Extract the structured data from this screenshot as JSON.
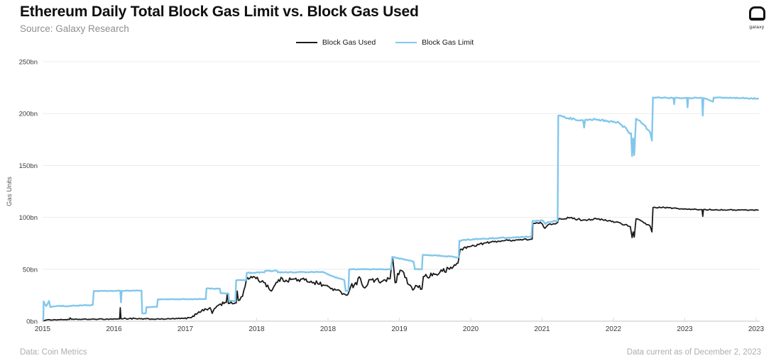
{
  "header": {
    "title": "Ethereum Daily Total Block Gas Limit vs. Block Gas Used",
    "subtitle": "Source: Galaxy Research",
    "logo_text": "galaxy"
  },
  "legend": {
    "items": [
      {
        "label": "Block Gas Used",
        "color": "#1a1a1a"
      },
      {
        "label": "Block Gas Limit",
        "color": "#82c7ec"
      }
    ]
  },
  "footer": {
    "left": "Data: Coin Metrics",
    "right": "Data current as of December 2, 2023"
  },
  "colors": {
    "gas_used_line": "#1a1a1a",
    "gas_limit_line": "#82c7ec",
    "gridline": "#ececec",
    "axis_line": "#c4c4c4",
    "tick_text": "#3a3a3a",
    "axis_label_text": "#555555"
  },
  "chart_data": {
    "type": "line",
    "title": "Ethereum Daily Total Block Gas Limit vs. Block Gas Used",
    "xlabel": "",
    "ylabel": "Gas Units",
    "y_unit": "bn gas units per day",
    "ylim": [
      0,
      250
    ],
    "grid": "horizontal",
    "legend_position": "top-center",
    "x_unit": "months since July 2015",
    "x_range_months": [
      0,
      101.3
    ],
    "y_ticks": [
      {
        "value": 0,
        "label": "0bn"
      },
      {
        "value": 50,
        "label": "50bn"
      },
      {
        "value": 100,
        "label": "100bn"
      },
      {
        "value": 150,
        "label": "150bn"
      },
      {
        "value": 200,
        "label": "200bn"
      },
      {
        "value": 250,
        "label": "250bn"
      }
    ],
    "x_ticks": [
      {
        "m": 0,
        "label": "2015"
      },
      {
        "m": 10.1,
        "label": "2016"
      },
      {
        "m": 20.2,
        "label": "2017"
      },
      {
        "m": 30.3,
        "label": "2018"
      },
      {
        "m": 40.4,
        "label": "2018"
      },
      {
        "m": 50.5,
        "label": "2019"
      },
      {
        "m": 60.6,
        "label": "2020"
      },
      {
        "m": 70.7,
        "label": "2021"
      },
      {
        "m": 80.8,
        "label": "2022"
      },
      {
        "m": 90.9,
        "label": "2023"
      },
      {
        "m": 101,
        "label": "2023"
      }
    ],
    "series": [
      {
        "name": "Block Gas Used",
        "color": "#1a1a1a",
        "stroke_width": 1.8,
        "points_format": [
          "month_since_jul2015",
          "bn_per_day",
          "daily_noise_bn"
        ],
        "points": [
          [
            0.1,
            0.4,
            0
          ],
          [
            0.6,
            1.2,
            0.25
          ],
          [
            3.8,
            1.6,
            0.3
          ],
          [
            3.9,
            3.2,
            0
          ],
          [
            4.1,
            1.7,
            0.3
          ],
          [
            9.5,
            2.0,
            0.4
          ],
          [
            10.9,
            2.2,
            0.5
          ],
          [
            11.0,
            13,
            0
          ],
          [
            11.1,
            2.4,
            0.5
          ],
          [
            12.3,
            2.6,
            1.0
          ],
          [
            13.5,
            2.2,
            0.5
          ],
          [
            16.5,
            2.0,
            0.4
          ],
          [
            20.0,
            2.6,
            0.5
          ],
          [
            21.1,
            3.5,
            0.7
          ],
          [
            22.1,
            9,
            1.2
          ],
          [
            23.7,
            13,
            1.5
          ],
          [
            24.0,
            7.5,
            0
          ],
          [
            24.3,
            12,
            1.5
          ],
          [
            25.0,
            16,
            2.0
          ],
          [
            26.0,
            18,
            2.0
          ],
          [
            26.15,
            27,
            0
          ],
          [
            26.3,
            17,
            1.5
          ],
          [
            27.4,
            17.5,
            1.5
          ],
          [
            27.55,
            29,
            0
          ],
          [
            27.7,
            20,
            1.5
          ],
          [
            28.3,
            24,
            1.5
          ],
          [
            28.85,
            40,
            1.5
          ],
          [
            29.5,
            43,
            1.8
          ],
          [
            30.2,
            41,
            2.0
          ],
          [
            31.5,
            37,
            2.5
          ],
          [
            32.4,
            29,
            1.5
          ],
          [
            33.4,
            40,
            2.2
          ],
          [
            36.2,
            40,
            2.5
          ],
          [
            38.0,
            38.5,
            2.5
          ],
          [
            39.7,
            35,
            2.0
          ],
          [
            41.5,
            30,
            1.8
          ],
          [
            42.6,
            26.5,
            1.2
          ],
          [
            43.2,
            25.5,
            0.8
          ],
          [
            43.6,
            33,
            3.0
          ],
          [
            45.0,
            41,
            3.2
          ],
          [
            45.6,
            32,
            2.0
          ],
          [
            46.4,
            40,
            3.2
          ],
          [
            47.6,
            38,
            3.0
          ],
          [
            49.2,
            41,
            2.5
          ],
          [
            49.55,
            61.5,
            0
          ],
          [
            49.9,
            37,
            3.0
          ],
          [
            50.6,
            49,
            3.0
          ],
          [
            51.3,
            42,
            3.0
          ],
          [
            52.4,
            30,
            2.0
          ],
          [
            53.0,
            34,
            2.2
          ],
          [
            53.7,
            31,
            1.5
          ],
          [
            53.9,
            43,
            2.5
          ],
          [
            55.5,
            45,
            3.0
          ],
          [
            56.6,
            48,
            3.0
          ],
          [
            57.6,
            50,
            2.5
          ],
          [
            58.8,
            56,
            2.0
          ],
          [
            59.1,
            69,
            1.5
          ],
          [
            60.5,
            72,
            1.2
          ],
          [
            62.8,
            75.5,
            0.9
          ],
          [
            65.0,
            77.5,
            0.8
          ],
          [
            69.3,
            79,
            0.6
          ],
          [
            69.4,
            94,
            0.8
          ],
          [
            70.6,
            94.5,
            0.8
          ],
          [
            71.1,
            89.5,
            0.6
          ],
          [
            71.5,
            92.5,
            0.8
          ],
          [
            72.9,
            95,
            0.8
          ],
          [
            73.05,
            98.5,
            0.8
          ],
          [
            74.5,
            99.5,
            0.9
          ],
          [
            76.5,
            97.5,
            0.9
          ],
          [
            78.4,
            98.5,
            0.8
          ],
          [
            81.6,
            95,
            0.9
          ],
          [
            83.2,
            91,
            0.8
          ],
          [
            83.45,
            80.5,
            0
          ],
          [
            83.6,
            86,
            0
          ],
          [
            83.75,
            81,
            0
          ],
          [
            84.0,
            98.5,
            0.8
          ],
          [
            85.3,
            94.5,
            0.9
          ],
          [
            86.0,
            91.5,
            0.8
          ],
          [
            86.25,
            86,
            0
          ],
          [
            86.4,
            109.5,
            0.5
          ],
          [
            88.0,
            109.5,
            0.5
          ],
          [
            91.2,
            107.8,
            0.5
          ],
          [
            93.35,
            107.5,
            0.5
          ],
          [
            93.45,
            101,
            0
          ],
          [
            93.55,
            107.5,
            0.5
          ],
          [
            97.0,
            107.2,
            0.4
          ],
          [
            101.3,
            107,
            0.4
          ]
        ]
      },
      {
        "name": "Block Gas Limit",
        "color": "#82c7ec",
        "stroke_width": 2.4,
        "points_format": [
          "month_since_jul2015",
          "bn_per_day",
          "daily_noise_bn"
        ],
        "points": [
          [
            0.1,
            1,
            0
          ],
          [
            0.15,
            19,
            0
          ],
          [
            0.5,
            14.5,
            0.8
          ],
          [
            0.9,
            19.5,
            0
          ],
          [
            1.1,
            13.5,
            0
          ],
          [
            1.6,
            14.3,
            0.4
          ],
          [
            4.0,
            14.8,
            0.4
          ],
          [
            7.1,
            15.5,
            0.3
          ],
          [
            7.25,
            29,
            0.3
          ],
          [
            11.0,
            29.2,
            0.3
          ],
          [
            11.1,
            18,
            0
          ],
          [
            11.2,
            29.2,
            0.3
          ],
          [
            14.0,
            29.5,
            0.3
          ],
          [
            14.1,
            7.5,
            0.2
          ],
          [
            14.6,
            7.5,
            0.2
          ],
          [
            14.7,
            13.5,
            0.2
          ],
          [
            16.2,
            13.8,
            0.2
          ],
          [
            16.3,
            21,
            0.25
          ],
          [
            23.1,
            21.3,
            0.25
          ],
          [
            23.2,
            31.5,
            0.3
          ],
          [
            25.1,
            31.2,
            0.3
          ],
          [
            25.2,
            27,
            0.3
          ],
          [
            26.3,
            26.5,
            0.3
          ],
          [
            26.4,
            19.5,
            0.3
          ],
          [
            27.3,
            19.5,
            0.3
          ],
          [
            27.4,
            39.5,
            0.3
          ],
          [
            28.8,
            39.5,
            0.3
          ],
          [
            28.9,
            46.5,
            0.4
          ],
          [
            31.4,
            47,
            0.4
          ],
          [
            31.5,
            48.5,
            0.4
          ],
          [
            33.2,
            48.5,
            0.4
          ],
          [
            33.3,
            47,
            0.4
          ],
          [
            39.7,
            47.3,
            0.4
          ],
          [
            40.7,
            44,
            0.4
          ],
          [
            42.7,
            39.5,
            0.4
          ],
          [
            42.9,
            29,
            0
          ],
          [
            43.3,
            29.5,
            0
          ],
          [
            43.4,
            50,
            0.3
          ],
          [
            49.3,
            50,
            0.3
          ],
          [
            49.5,
            62,
            0.4
          ],
          [
            52.5,
            57.5,
            0.5
          ],
          [
            52.7,
            50,
            0.3
          ],
          [
            53.7,
            50,
            0.3
          ],
          [
            53.8,
            63.8,
            0.4
          ],
          [
            56.5,
            63,
            0.4
          ],
          [
            58.9,
            61.5,
            0.4
          ],
          [
            59.0,
            77.5,
            0.4
          ],
          [
            61.0,
            79,
            0.5
          ],
          [
            69.2,
            81.5,
            0.5
          ],
          [
            69.35,
            96.5,
            0.5
          ],
          [
            70.8,
            96.8,
            0.6
          ],
          [
            71.2,
            93.5,
            0.6
          ],
          [
            71.6,
            95.5,
            0.6
          ],
          [
            72.9,
            96.5,
            0.6
          ],
          [
            73.0,
            198,
            0.8
          ],
          [
            74.0,
            196,
            1.0
          ],
          [
            76.5,
            193.5,
            1.0
          ],
          [
            76.65,
            186.5,
            0
          ],
          [
            76.8,
            194,
            0.8
          ],
          [
            78.4,
            194.5,
            0.8
          ],
          [
            81.6,
            191,
            1.2
          ],
          [
            83.3,
            181,
            1.5
          ],
          [
            83.45,
            159,
            0
          ],
          [
            83.6,
            176,
            0
          ],
          [
            83.75,
            160,
            0
          ],
          [
            84.0,
            195,
            0.8
          ],
          [
            85.0,
            190,
            1.0
          ],
          [
            86.0,
            182,
            1.0
          ],
          [
            86.25,
            174,
            0
          ],
          [
            86.4,
            215.5,
            0.5
          ],
          [
            89.3,
            215,
            0.5
          ],
          [
            89.4,
            209,
            0
          ],
          [
            89.5,
            215,
            0.5
          ],
          [
            91.2,
            215.2,
            0.5
          ],
          [
            91.3,
            206,
            0
          ],
          [
            91.4,
            215,
            0.5
          ],
          [
            93.35,
            215,
            0.5
          ],
          [
            93.45,
            198,
            0
          ],
          [
            93.55,
            215,
            0.5
          ],
          [
            94.9,
            211.5,
            0
          ],
          [
            95.0,
            215.5,
            0.5
          ],
          [
            101.3,
            214.5,
            0.5
          ]
        ]
      }
    ]
  }
}
